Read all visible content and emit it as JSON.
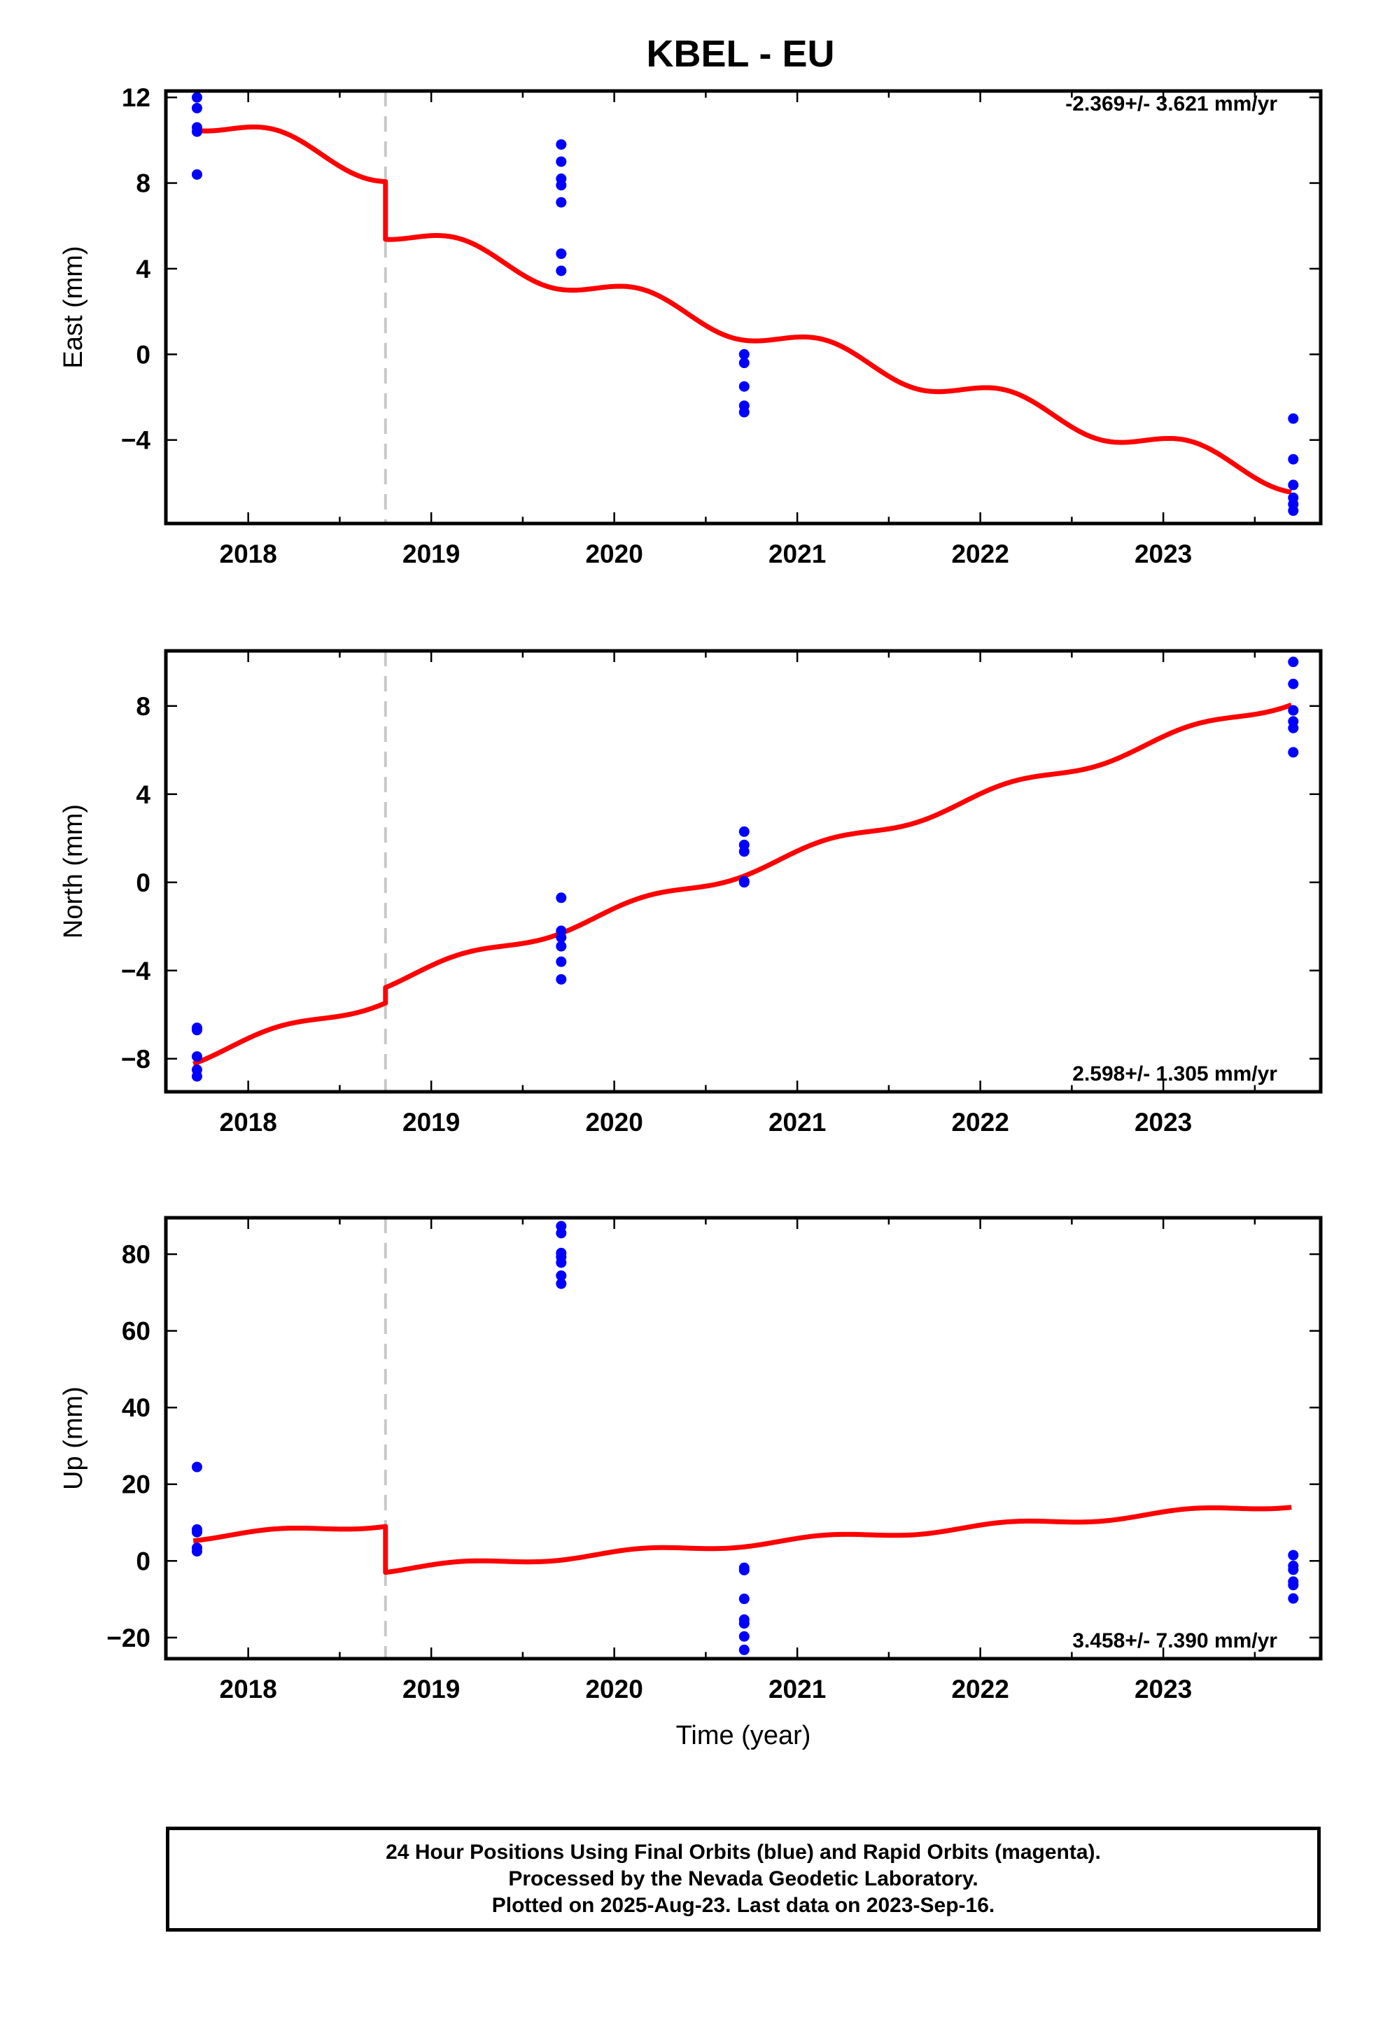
{
  "title": "KBEL - EU",
  "colors": {
    "observations": "#0000ff",
    "model": "#ff0000",
    "offset_line": "#c8c8c8"
  },
  "chart_data": [
    {
      "type": "scatter",
      "component": "east",
      "ylabel": "East (mm)",
      "xlabel": "",
      "xlim": [
        2017.55,
        2023.86
      ],
      "ylim": [
        -7.9,
        12.3
      ],
      "xticks": [
        2018,
        2019,
        2020,
        2021,
        2022,
        2023
      ],
      "xtick_labels": [
        "2018",
        "2019",
        "2020",
        "2021",
        "2022",
        "2023"
      ],
      "yticks": [
        12,
        8,
        4,
        0,
        -4
      ],
      "ytick_labels": [
        "12",
        "8",
        "4",
        "0",
        "−4"
      ],
      "rate_label": "-2.369+/- 3.621 mm/yr",
      "rate_position": "top-right",
      "offset_epoch": 2018.75,
      "model": {
        "start": 2017.7,
        "end": 2023.7,
        "offset_epoch": 2018.75,
        "value_at_start": 11.0,
        "rate": -2.369,
        "offset_step": -2.7,
        "annual_amplitude": 0.55,
        "phase": 0.9
      },
      "points": [
        [
          2017.72,
          12.0
        ],
        [
          2017.72,
          11.5
        ],
        [
          2017.72,
          10.6
        ],
        [
          2017.72,
          10.4
        ],
        [
          2017.72,
          8.4
        ],
        [
          2019.71,
          9.8
        ],
        [
          2019.71,
          9.0
        ],
        [
          2019.71,
          8.2
        ],
        [
          2019.71,
          7.9
        ],
        [
          2019.71,
          7.1
        ],
        [
          2019.71,
          4.7
        ],
        [
          2019.71,
          3.9
        ],
        [
          2020.71,
          0.0
        ],
        [
          2020.71,
          -0.4
        ],
        [
          2020.71,
          -1.5
        ],
        [
          2020.71,
          -2.4
        ],
        [
          2020.71,
          -2.7
        ],
        [
          2023.71,
          -3.0
        ],
        [
          2023.71,
          -4.9
        ],
        [
          2023.71,
          -6.1
        ],
        [
          2023.71,
          -6.7
        ],
        [
          2023.71,
          -7.0
        ],
        [
          2023.71,
          -7.3
        ]
      ]
    },
    {
      "type": "scatter",
      "component": "north",
      "ylabel": "North (mm)",
      "xlabel": "",
      "xlim": [
        2017.55,
        2023.86
      ],
      "ylim": [
        -9.5,
        10.5
      ],
      "xticks": [
        2018,
        2019,
        2020,
        2021,
        2022,
        2023
      ],
      "xtick_labels": [
        "2018",
        "2019",
        "2020",
        "2021",
        "2022",
        "2023"
      ],
      "yticks": [
        8,
        4,
        0,
        -4,
        -8
      ],
      "ytick_labels": [
        "8",
        "4",
        "0",
        "−4",
        "−8"
      ],
      "rate_label": "2.598+/- 1.305 mm/yr",
      "rate_position": "bottom-right",
      "offset_epoch": 2018.75,
      "model": {
        "start": 2017.7,
        "end": 2023.7,
        "offset_epoch": 2018.75,
        "value_at_start": -8.0,
        "rate": 2.598,
        "offset_step": 0.7,
        "annual_amplitude": 0.25,
        "phase": 0.9
      },
      "points": [
        [
          2017.72,
          -6.6
        ],
        [
          2017.72,
          -6.7
        ],
        [
          2017.72,
          -7.9
        ],
        [
          2017.72,
          -8.5
        ],
        [
          2017.72,
          -8.8
        ],
        [
          2019.71,
          -0.7
        ],
        [
          2019.71,
          -2.2
        ],
        [
          2019.71,
          -2.5
        ],
        [
          2019.71,
          -2.9
        ],
        [
          2019.71,
          -3.6
        ],
        [
          2019.71,
          -4.4
        ],
        [
          2020.71,
          2.3
        ],
        [
          2020.71,
          1.7
        ],
        [
          2020.71,
          1.4
        ],
        [
          2020.71,
          0.05
        ],
        [
          2020.71,
          0.0
        ],
        [
          2023.71,
          10.0
        ],
        [
          2023.71,
          9.0
        ],
        [
          2023.71,
          7.8
        ],
        [
          2023.71,
          7.3
        ],
        [
          2023.71,
          7.0
        ],
        [
          2023.71,
          5.9
        ]
      ]
    },
    {
      "type": "scatter",
      "component": "up",
      "ylabel": "Up (mm)",
      "xlabel": "Time (year)",
      "xlim": [
        2017.55,
        2023.86
      ],
      "ylim": [
        -25.5,
        89.5
      ],
      "xticks": [
        2018,
        2019,
        2020,
        2021,
        2022,
        2023
      ],
      "xtick_labels": [
        "2018",
        "2019",
        "2020",
        "2021",
        "2022",
        "2023"
      ],
      "yticks": [
        80,
        60,
        40,
        20,
        0,
        -20
      ],
      "ytick_labels": [
        "80",
        "60",
        "40",
        "20",
        "0",
        "−20"
      ],
      "rate_label": "3.458+/- 7.390 mm/yr",
      "rate_position": "bottom-right",
      "offset_epoch": 2018.75,
      "model": {
        "start": 2017.7,
        "end": 2023.7,
        "offset_epoch": 2018.75,
        "value_at_start": 6.0,
        "rate": 3.458,
        "offset_step": -12.0,
        "annual_amplitude": 0.8,
        "phase": 0.9
      },
      "points": [
        [
          2017.72,
          24.5
        ],
        [
          2017.72,
          8.2
        ],
        [
          2017.72,
          7.5
        ],
        [
          2017.72,
          3.4
        ],
        [
          2017.72,
          2.5
        ],
        [
          2019.71,
          87.3
        ],
        [
          2019.71,
          85.5
        ],
        [
          2019.71,
          80.3
        ],
        [
          2019.71,
          79.3
        ],
        [
          2019.71,
          77.8
        ],
        [
          2019.71,
          74.4
        ],
        [
          2019.71,
          72.3
        ],
        [
          2020.71,
          -1.8
        ],
        [
          2020.71,
          -2.4
        ],
        [
          2020.71,
          -9.9
        ],
        [
          2020.71,
          -15.3
        ],
        [
          2020.71,
          -16.3
        ],
        [
          2020.71,
          -19.7
        ],
        [
          2020.71,
          -23.2
        ],
        [
          2023.71,
          1.5
        ],
        [
          2023.71,
          -1.3
        ],
        [
          2023.71,
          -2.3
        ],
        [
          2023.71,
          -5.4
        ],
        [
          2023.71,
          -6.3
        ],
        [
          2023.71,
          -9.8
        ]
      ]
    }
  ],
  "footer": {
    "line1": "24 Hour Positions Using Final Orbits (blue) and Rapid Orbits (magenta).",
    "line2": "Processed by the Nevada Geodetic Laboratory.",
    "line3": "Plotted on 2025-Aug-23. Last data on 2023-Sep-16."
  }
}
